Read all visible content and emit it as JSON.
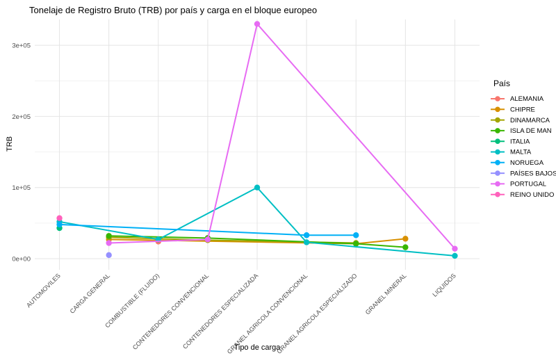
{
  "chart_data": {
    "type": "line",
    "title": "Tonelaje de Registro Bruto (TRB) por país y carga en el bloque europeo",
    "xlabel": "Tipo de carga",
    "ylabel": "TRB",
    "legend_title": "País",
    "legend_position": "right",
    "grid": true,
    "ylim": [
      0,
      336000
    ],
    "ytick_values": [
      0,
      100000,
      200000,
      300000
    ],
    "ytick_labels": [
      "0e+00",
      "1e+05",
      "2e+05",
      "3e+05"
    ],
    "yminor_values": [
      50000,
      150000,
      250000
    ],
    "categories": [
      "AUTOMOVILES",
      "CARGA GENERAL",
      "COMBUSTIBLE (FLUIDO)",
      "CONTENEDORES CONVENCIONAL",
      "CONTENEDORES ESPECIALIZADA",
      "GRANEL AGRICOLA CONVENCIONAL",
      "GRANEL AGRICOLA ESPECIALIZADO",
      "GRANEL MINERAL",
      "LIQUIDOS"
    ],
    "series": [
      {
        "name": "ALEMANIA",
        "color": "#F8766D",
        "values": [
          null,
          null,
          24000,
          null,
          null,
          null,
          null,
          null,
          null
        ]
      },
      {
        "name": "CHIPRE",
        "color": "#D89000",
        "values": [
          null,
          27000,
          null,
          null,
          null,
          null,
          21000,
          28000,
          null
        ]
      },
      {
        "name": "DINAMARCA",
        "color": "#A3A500",
        "values": [
          null,
          30000,
          null,
          26000,
          null,
          null,
          22000,
          null,
          null
        ]
      },
      {
        "name": "ISLA DE MAN",
        "color": "#39B600",
        "values": [
          null,
          32000,
          null,
          29000,
          null,
          null,
          21000,
          16000,
          null
        ]
      },
      {
        "name": "ITALIA",
        "color": "#00BF7D",
        "values": [
          43000,
          null,
          null,
          null,
          null,
          null,
          null,
          null,
          null
        ]
      },
      {
        "name": "MALTA",
        "color": "#00BFC4",
        "values": [
          52000,
          null,
          27000,
          null,
          100000,
          23000,
          null,
          null,
          4000
        ]
      },
      {
        "name": "NORUEGA",
        "color": "#00B0F6",
        "values": [
          48000,
          null,
          null,
          null,
          null,
          33000,
          33000,
          null,
          null
        ]
      },
      {
        "name": "PAÍSES BAJOS",
        "color": "#9590FF",
        "values": [
          null,
          5000,
          null,
          null,
          null,
          null,
          null,
          null,
          null
        ]
      },
      {
        "name": "PORTUGAL",
        "color": "#E76BF3",
        "values": [
          null,
          22000,
          null,
          27000,
          330000,
          null,
          null,
          null,
          14000
        ]
      },
      {
        "name": "REINO UNIDO",
        "color": "#FF62BC",
        "values": [
          57000,
          null,
          null,
          null,
          null,
          null,
          null,
          null,
          null
        ]
      }
    ],
    "grid_color_major": "#E4E4E4",
    "grid_color_minor": "#F2F2F2"
  }
}
